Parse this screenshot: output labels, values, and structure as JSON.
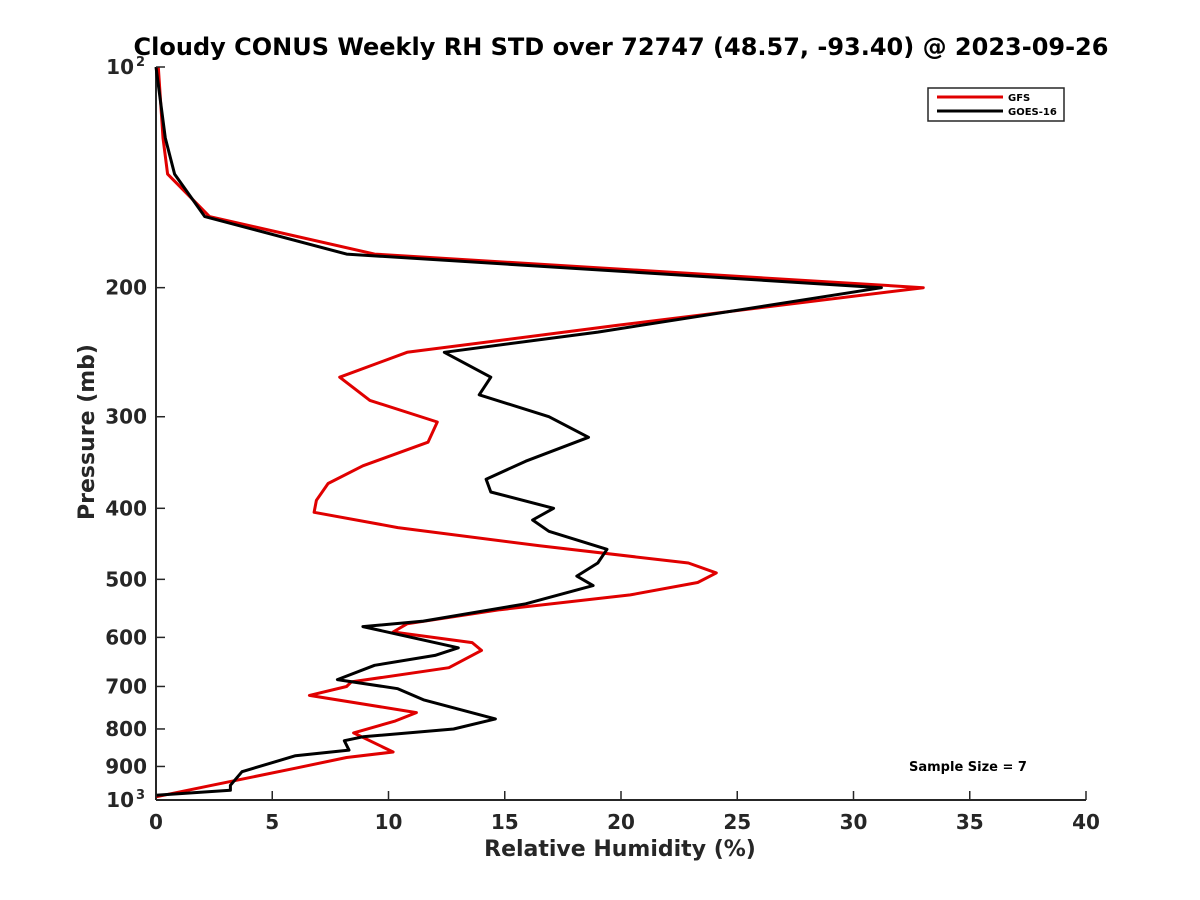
{
  "chart_data": {
    "type": "line",
    "title": "Cloudy CONUS Weekly RH STD over 72747 (48.57, -93.40) @ 2023-09-26",
    "xlabel": "Relative Humidity (%)",
    "ylabel": "Pressure (mb)",
    "xlim": [
      0,
      40
    ],
    "ylim": [
      100,
      1000
    ],
    "yscale": "log",
    "y_reversed": true,
    "grid": false,
    "legend_position": "top-right",
    "x_ticks": [
      0,
      5,
      10,
      15,
      20,
      25,
      30,
      35,
      40
    ],
    "x_tick_labels": [
      "0",
      "5",
      "10",
      "15",
      "20",
      "25",
      "30",
      "35",
      "40"
    ],
    "y_ticks": [
      {
        "value": 100,
        "label": "10",
        "sup": "2"
      },
      {
        "value": 200,
        "label": "200"
      },
      {
        "value": 300,
        "label": "300"
      },
      {
        "value": 400,
        "label": "400"
      },
      {
        "value": 500,
        "label": "500"
      },
      {
        "value": 600,
        "label": "600"
      },
      {
        "value": 700,
        "label": "700"
      },
      {
        "value": 800,
        "label": "800"
      },
      {
        "value": 900,
        "label": "900"
      },
      {
        "value": 1000,
        "label": "10",
        "sup": "3"
      }
    ],
    "series": [
      {
        "name": "GFS",
        "color": "#e00000",
        "points": [
          [
            0.1,
            100
          ],
          [
            0.3,
            125
          ],
          [
            0.5,
            140
          ],
          [
            2.3,
            160
          ],
          [
            9.4,
            180
          ],
          [
            33.0,
            200
          ],
          [
            19.9,
            225
          ],
          [
            10.8,
            245
          ],
          [
            7.9,
            265
          ],
          [
            9.2,
            285
          ],
          [
            12.1,
            305
          ],
          [
            11.7,
            325
          ],
          [
            8.9,
            350
          ],
          [
            7.4,
            370
          ],
          [
            6.9,
            390
          ],
          [
            6.8,
            405
          ],
          [
            10.4,
            425
          ],
          [
            16.5,
            450
          ],
          [
            22.9,
            475
          ],
          [
            24.1,
            490
          ],
          [
            23.3,
            505
          ],
          [
            20.4,
            525
          ],
          [
            14.8,
            550
          ],
          [
            10.8,
            575
          ],
          [
            10.2,
            590
          ],
          [
            13.6,
            610
          ],
          [
            14.0,
            625
          ],
          [
            12.6,
            660
          ],
          [
            8.4,
            690
          ],
          [
            8.2,
            700
          ],
          [
            6.6,
            720
          ],
          [
            11.2,
            760
          ],
          [
            10.3,
            780
          ],
          [
            8.5,
            810
          ],
          [
            10.2,
            860
          ],
          [
            8.2,
            875
          ],
          [
            6.0,
            905
          ],
          [
            2.4,
            955
          ],
          [
            0.0,
            990
          ]
        ]
      },
      {
        "name": "GOES-16",
        "color": "#000000",
        "points": [
          [
            0.0,
            100
          ],
          [
            0.4,
            125
          ],
          [
            0.8,
            140
          ],
          [
            2.1,
            160
          ],
          [
            8.2,
            180
          ],
          [
            31.2,
            200
          ],
          [
            19.0,
            230
          ],
          [
            12.4,
            245
          ],
          [
            14.4,
            265
          ],
          [
            13.9,
            280
          ],
          [
            16.9,
            300
          ],
          [
            18.6,
            320
          ],
          [
            15.9,
            345
          ],
          [
            14.2,
            365
          ],
          [
            14.4,
            380
          ],
          [
            17.1,
            400
          ],
          [
            16.2,
            415
          ],
          [
            16.9,
            430
          ],
          [
            19.4,
            455
          ],
          [
            19.0,
            475
          ],
          [
            18.1,
            495
          ],
          [
            18.8,
            510
          ],
          [
            15.9,
            540
          ],
          [
            11.5,
            570
          ],
          [
            8.9,
            580
          ],
          [
            13.0,
            620
          ],
          [
            12.0,
            635
          ],
          [
            9.4,
            655
          ],
          [
            7.8,
            685
          ],
          [
            10.4,
            705
          ],
          [
            11.5,
            730
          ],
          [
            14.6,
            775
          ],
          [
            12.8,
            800
          ],
          [
            8.9,
            820
          ],
          [
            8.1,
            830
          ],
          [
            8.3,
            855
          ],
          [
            6.0,
            870
          ],
          [
            3.7,
            915
          ],
          [
            3.2,
            955
          ],
          [
            3.2,
            970
          ],
          [
            0.0,
            985
          ]
        ]
      }
    ],
    "annotation": "Sample Size = 7"
  }
}
